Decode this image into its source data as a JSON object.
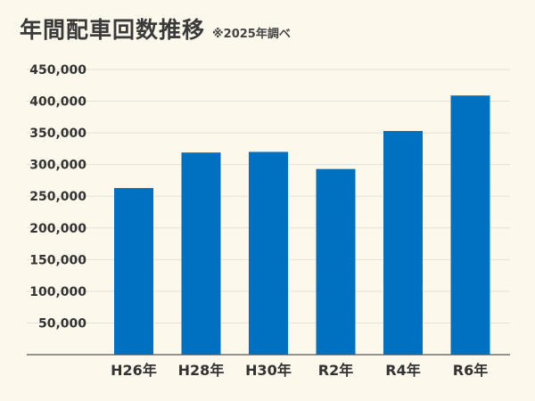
{
  "header": {
    "title": "年間配車回数推移",
    "note": "※2025年調べ"
  },
  "colors": {
    "bar": "#0070c0",
    "grid": "#e4e1da",
    "axis": "#555555",
    "background": "#fdf8ec"
  },
  "chart_data": {
    "type": "bar",
    "title": "年間配車回数推移",
    "note": "※2025年調べ",
    "categories": [
      "H26年",
      "H28年",
      "H30年",
      "R2年",
      "R4年",
      "R6年"
    ],
    "values": [
      263000,
      319000,
      320000,
      293000,
      353000,
      409000
    ],
    "ylim": [
      0,
      450000
    ],
    "yticks": [
      50000,
      100000,
      150000,
      200000,
      250000,
      300000,
      350000,
      400000,
      450000
    ],
    "ytick_labels": [
      "50,000",
      "100,000",
      "150,000",
      "200,000",
      "250,000",
      "300,000",
      "350,000",
      "400,000",
      "450,000"
    ],
    "grid": true,
    "legend": "none"
  }
}
